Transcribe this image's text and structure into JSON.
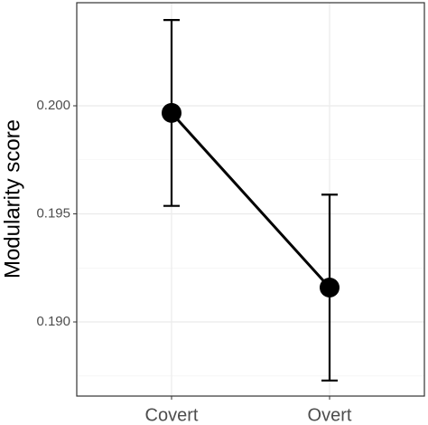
{
  "chart_data": {
    "type": "line",
    "y_label": "Modularity score",
    "categories": [
      "Covert",
      "Overt"
    ],
    "series": [
      {
        "color": "#000000",
        "values": [
          0.19967,
          0.19159
        ],
        "errors": [
          0.0043,
          0.0043
        ]
      }
    ],
    "ylim": [
      0.18657,
      0.20477
    ],
    "yticks": [
      {
        "value": 0.19,
        "label": "0.190"
      },
      {
        "value": 0.195,
        "label": "0.195"
      },
      {
        "value": 0.2,
        "label": "0.200"
      }
    ],
    "yminor": [
      0.1875,
      0.1925,
      0.1975
    ],
    "grid": true
  }
}
